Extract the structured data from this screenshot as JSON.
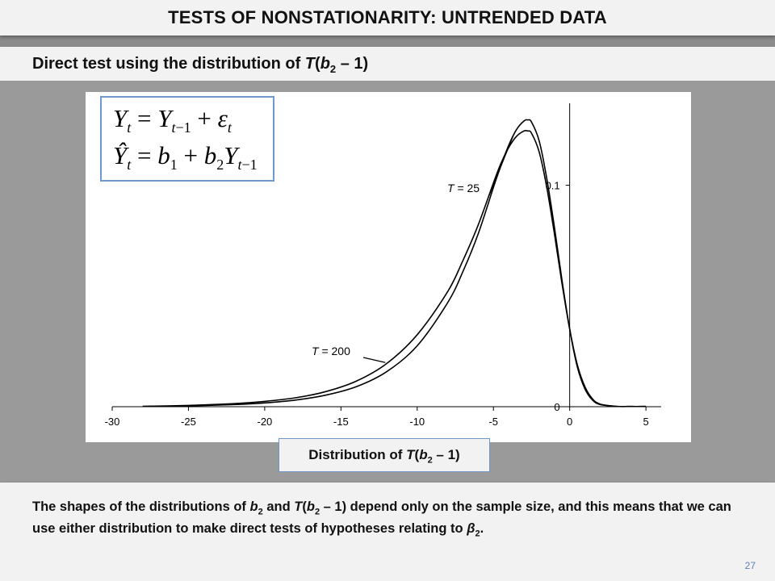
{
  "slide": {
    "title": "TESTS OF NONSTATIONARITY: UNTRENDED DATA",
    "subtitle_prefix": "Direct test using the distribution of ",
    "subtitle_T": "T",
    "subtitle_b": "b",
    "subtitle_sub": "2",
    "subtitle_suffix": " – 1)",
    "page_number": "27"
  },
  "equations": {
    "line1": "Y_t = Y_{t−1} + ε_t",
    "line2": "Ŷ_t = b_1 + b_2 Y_{t−1}"
  },
  "caption": {
    "prefix": "Distribution of ",
    "T": "T",
    "b": "b",
    "sub": "2",
    "suffix": " – 1)"
  },
  "explanation": {
    "part1": "The shapes of the distributions of ",
    "b": "b",
    "sub1": "2",
    "part2": " and ",
    "T": "T",
    "part3": "(",
    "b2": "b",
    "sub2": "2",
    "part4": " – 1) depend only on the sample size, and this means that we can use either distribution to make direct tests of hypotheses relating to ",
    "beta": "β",
    "sub3": "2",
    "part5": "."
  },
  "chart_data": {
    "type": "line",
    "xlim": [
      -30,
      6
    ],
    "ylim": [
      0,
      0.137
    ],
    "xticks": [
      -30,
      -25,
      -20,
      -15,
      -10,
      -5,
      0,
      5
    ],
    "xtick_labels": [
      "-30",
      "-25",
      "-20",
      "-15",
      "-10",
      "-5",
      "0",
      "5"
    ],
    "yticks": [
      0,
      0.1
    ],
    "ytick_labels": [
      "0",
      "0.1"
    ],
    "grid": false,
    "series": [
      {
        "name": "T = 25",
        "name_T": "T",
        "name_rest": " = 25",
        "x": [
          -28,
          -25,
          -22,
          -20,
          -18,
          -16,
          -14,
          -12,
          -10,
          -8,
          -7,
          -6,
          -5,
          -4.5,
          -4,
          -3.5,
          -3,
          -2.75,
          -2.5,
          -2,
          -1.5,
          -1,
          -0.5,
          0,
          0.5,
          1,
          1.5,
          2,
          3,
          4,
          5
        ],
        "y": [
          0.0001,
          0.0004,
          0.001,
          0.0017,
          0.003,
          0.0052,
          0.009,
          0.0158,
          0.0275,
          0.047,
          0.061,
          0.078,
          0.099,
          0.109,
          0.118,
          0.125,
          0.129,
          0.1295,
          0.1285,
          0.12,
          0.103,
          0.081,
          0.057,
          0.035,
          0.018,
          0.008,
          0.003,
          0.001,
          0.0002,
          0.0001,
          0.0001
        ]
      },
      {
        "name": "T = 200",
        "name_T": "T",
        "name_rest": " = 200",
        "x": [
          -28,
          -25,
          -22,
          -20,
          -18,
          -16,
          -14,
          -12,
          -10,
          -8,
          -7,
          -6,
          -5,
          -4.5,
          -4,
          -3.5,
          -3,
          -2.75,
          -2.5,
          -2,
          -1.5,
          -1,
          -0.5,
          0,
          0.5,
          1,
          1.5,
          2,
          3,
          4,
          5
        ],
        "y": [
          0.0002,
          0.0006,
          0.0014,
          0.0024,
          0.004,
          0.0068,
          0.0115,
          0.0195,
          0.0325,
          0.052,
          0.066,
          0.082,
          0.101,
          0.11,
          0.117,
          0.122,
          0.1245,
          0.1245,
          0.1235,
          0.115,
          0.099,
          0.078,
          0.0555,
          0.035,
          0.019,
          0.009,
          0.0035,
          0.0012,
          0.0002,
          0.0001,
          0.0001
        ]
      }
    ]
  }
}
